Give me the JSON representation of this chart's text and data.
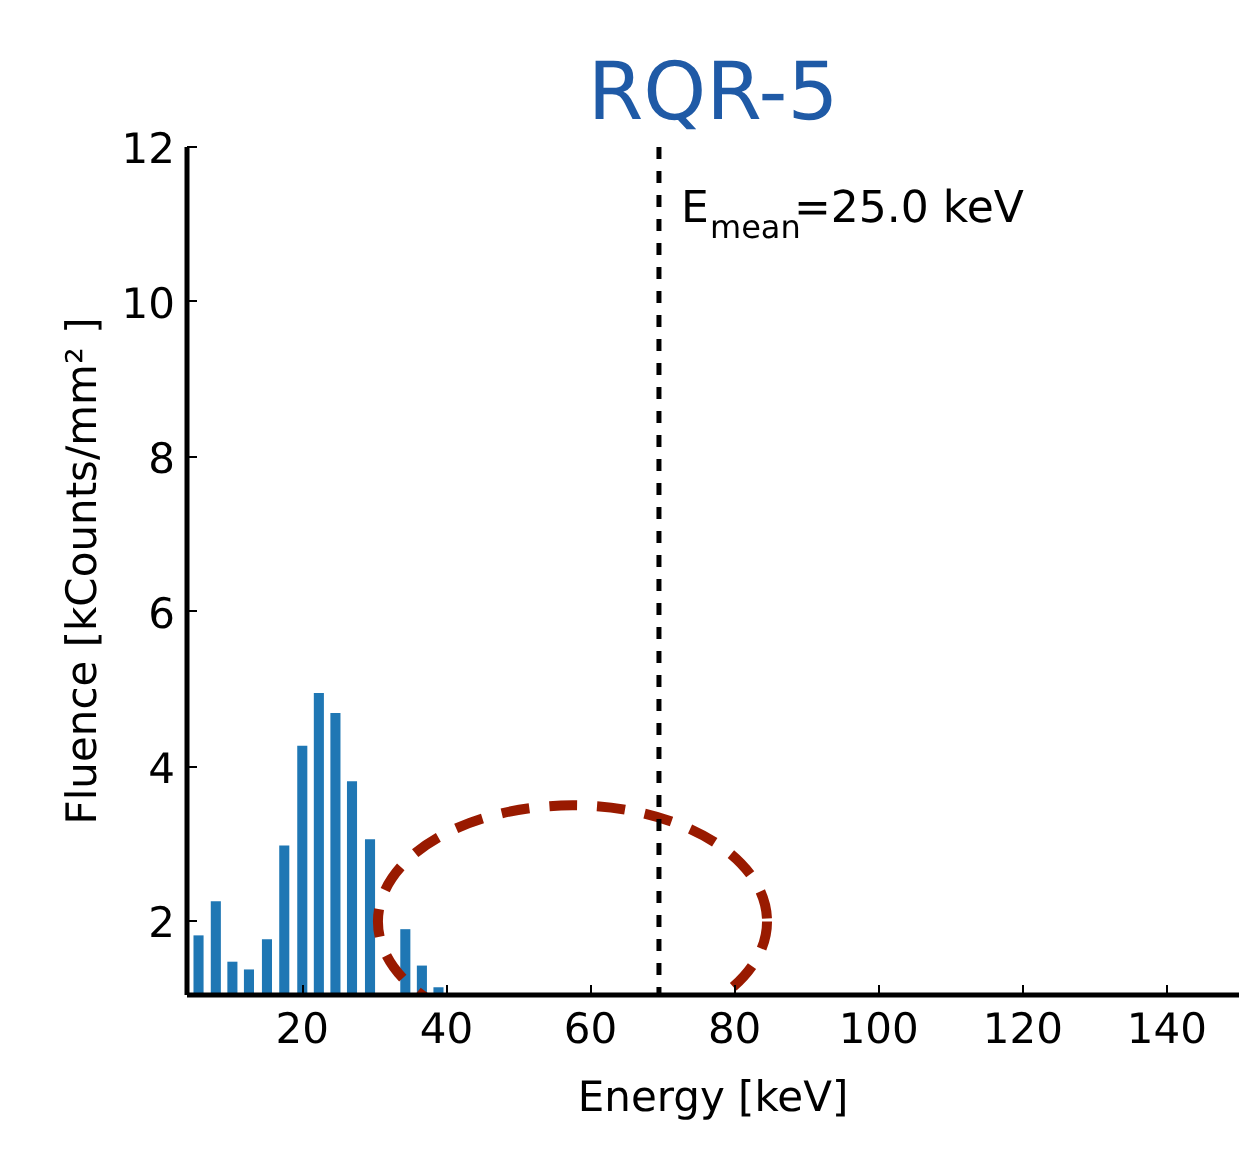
{
  "chart_data": {
    "type": "bar",
    "title": "RQR-5",
    "xlabel": "Energy [keV]",
    "ylabel": "Fluence [kCounts/mm² ]",
    "x": [
      5.6,
      8.0,
      10.3,
      12.6,
      15.1,
      17.5,
      20.0,
      22.3,
      24.6,
      26.9,
      29.4,
      31.9,
      34.3,
      36.6,
      38.9
    ],
    "series": [
      {
        "color": "#1f77b4",
        "values": [
          1.82,
          2.26,
          1.48,
          1.38,
          1.77,
          2.98,
          4.27,
          4.95,
          4.69,
          3.81,
          3.06,
          null,
          1.9,
          1.43,
          1.15
        ]
      }
    ],
    "xlim": [
      4,
      150
    ],
    "ylim": [
      1.05,
      12
    ],
    "xticks": [
      20,
      40,
      60,
      80,
      100,
      120,
      140
    ],
    "yticks": [
      2,
      4,
      6,
      8,
      10,
      12
    ],
    "ref_lines": [
      {
        "axis": "x",
        "value": 69.5,
        "color": "#000000",
        "line_style": "dashed"
      }
    ],
    "annotations": [
      "E$_{mean}$=25.0 keV"
    ],
    "grid": false
  }
}
